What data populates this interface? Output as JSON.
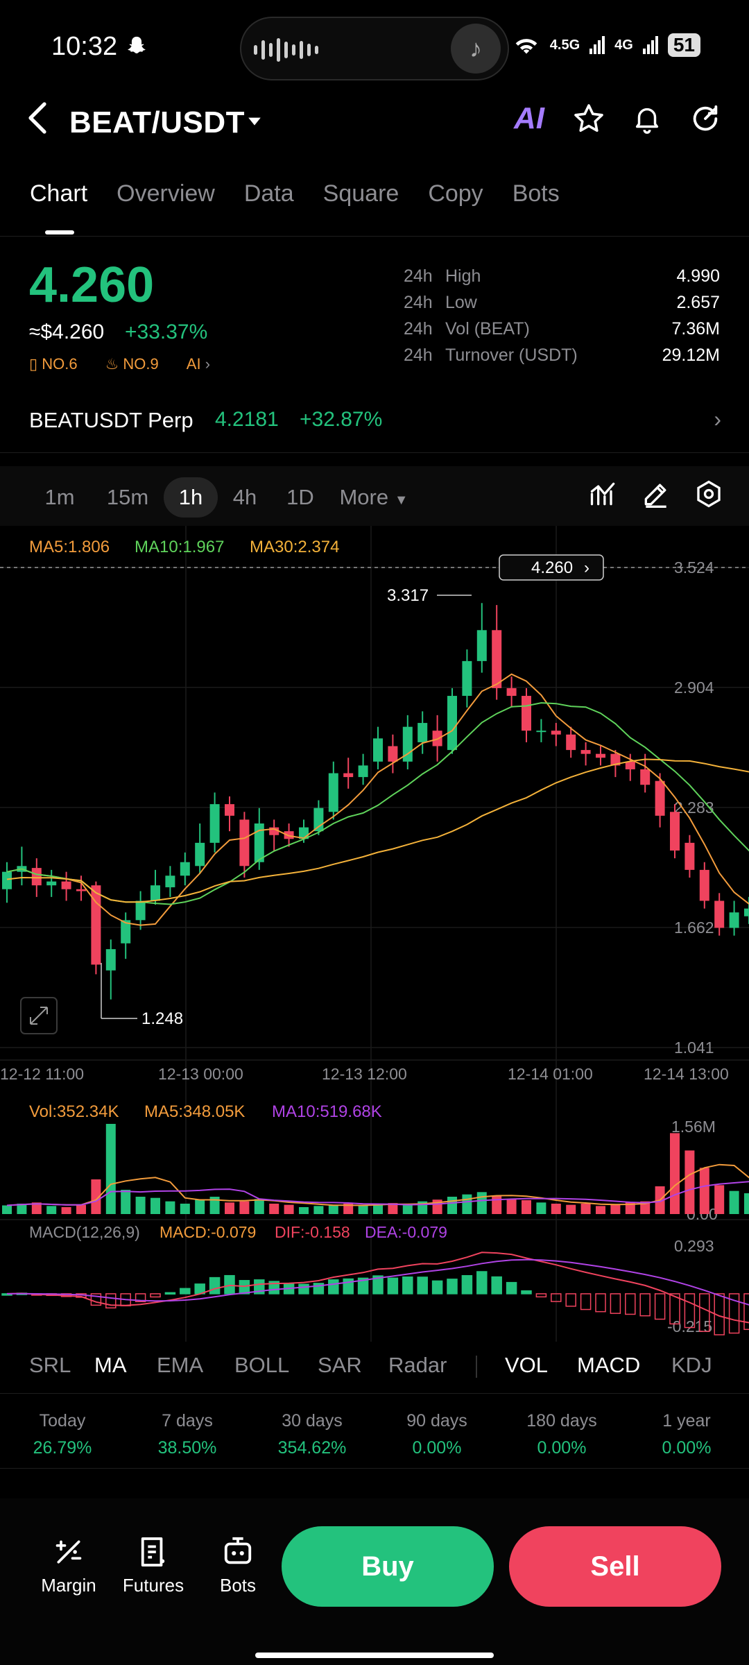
{
  "status_bar": {
    "time": "10:32",
    "network1": "4.5G",
    "network2": "4G",
    "battery": "51"
  },
  "header": {
    "pair": "BEAT/USDT",
    "ai_label": "AI"
  },
  "tabs": [
    {
      "label": "Chart",
      "active": true
    },
    {
      "label": "Overview"
    },
    {
      "label": "Data"
    },
    {
      "label": "Square"
    },
    {
      "label": "Copy"
    },
    {
      "label": "Bots"
    }
  ],
  "ticker": {
    "price": "4.260",
    "usd_price": "≈$4.260",
    "change": "+33.37%",
    "rank1": "NO.6",
    "rank2": "NO.9",
    "ai": "AI",
    "stats": [
      {
        "period": "24h",
        "label": "High",
        "value": "4.990"
      },
      {
        "period": "24h",
        "label": "Low",
        "value": "2.657"
      },
      {
        "period": "24h",
        "label": "Vol (BEAT)",
        "value": "7.36M"
      },
      {
        "period": "24h",
        "label": "Turnover (USDT)",
        "value": "29.12M"
      }
    ]
  },
  "perp": {
    "name": "BEATUSDT Perp",
    "price": "4.2181",
    "change": "+32.87%"
  },
  "timeframes": [
    {
      "label": "1m"
    },
    {
      "label": "15m"
    },
    {
      "label": "1h",
      "active": true
    },
    {
      "label": "4h"
    },
    {
      "label": "1D"
    },
    {
      "label": "More"
    }
  ],
  "colors": {
    "up": "#23c27d",
    "down": "#f0435e",
    "ma5": "#f39c3c",
    "ma10": "#5fd35b",
    "ma30": "#f4b23a",
    "vol_ma10": "#b043e6"
  },
  "chart_data": {
    "type": "candlestick",
    "ma_legend": {
      "ma5": "MA5:1.806",
      "ma10": "MA10:1.967",
      "ma30": "MA30:2.374"
    },
    "current_price_label": "4.260",
    "y_ticks": [
      "3.524",
      "2.904",
      "2.283",
      "1.662",
      "1.041"
    ],
    "y_tick_values": [
      3.524,
      2.904,
      2.283,
      1.662,
      1.041
    ],
    "x_ticks": [
      "12-12 11:00",
      "12-13 00:00",
      "12-13 12:00",
      "12-14 01:00",
      "12-14 13:00"
    ],
    "high_label": "3.317",
    "low_label": "1.248",
    "candles": [
      [
        1.86,
        1.95,
        2.0,
        1.79
      ],
      [
        1.95,
        1.98,
        2.08,
        1.88
      ],
      [
        1.97,
        1.88,
        2.02,
        1.82
      ],
      [
        1.88,
        1.9,
        1.96,
        1.82
      ],
      [
        1.9,
        1.86,
        1.95,
        1.8
      ],
      [
        1.86,
        1.85,
        1.93,
        1.8
      ],
      [
        1.88,
        1.47,
        1.9,
        1.42
      ],
      [
        1.44,
        1.55,
        1.6,
        1.29
      ],
      [
        1.58,
        1.7,
        1.74,
        1.5
      ],
      [
        1.7,
        1.8,
        1.85,
        1.65
      ],
      [
        1.8,
        1.88,
        1.96,
        1.78
      ],
      [
        1.87,
        1.93,
        1.98,
        1.82
      ],
      [
        1.93,
        2.0,
        2.05,
        1.88
      ],
      [
        1.98,
        2.1,
        2.2,
        1.94
      ],
      [
        2.1,
        2.3,
        2.36,
        2.05
      ],
      [
        2.3,
        2.24,
        2.34,
        2.16
      ],
      [
        2.22,
        1.98,
        2.26,
        1.92
      ],
      [
        2.0,
        2.2,
        2.28,
        1.96
      ],
      [
        2.18,
        2.14,
        2.22,
        2.06
      ],
      [
        2.16,
        2.12,
        2.2,
        2.08
      ],
      [
        2.12,
        2.18,
        2.22,
        2.1
      ],
      [
        2.16,
        2.28,
        2.32,
        2.14
      ],
      [
        2.26,
        2.46,
        2.52,
        2.22
      ],
      [
        2.46,
        2.44,
        2.54,
        2.38
      ],
      [
        2.44,
        2.5,
        2.56,
        2.4
      ],
      [
        2.52,
        2.64,
        2.7,
        2.48
      ],
      [
        2.6,
        2.52,
        2.66,
        2.46
      ],
      [
        2.52,
        2.7,
        2.76,
        2.48
      ],
      [
        2.62,
        2.72,
        2.78,
        2.56
      ],
      [
        2.68,
        2.6,
        2.76,
        2.52
      ],
      [
        2.58,
        2.86,
        2.9,
        2.56
      ],
      [
        2.86,
        3.04,
        3.1,
        2.8
      ],
      [
        3.04,
        3.2,
        3.34,
        2.98
      ],
      [
        3.2,
        2.9,
        3.33,
        2.84
      ],
      [
        2.9,
        2.86,
        2.96,
        2.8
      ],
      [
        2.86,
        2.68,
        2.9,
        2.62
      ],
      [
        2.68,
        2.68,
        2.74,
        2.62
      ],
      [
        2.68,
        2.66,
        2.72,
        2.6
      ],
      [
        2.66,
        2.58,
        2.7,
        2.54
      ],
      [
        2.58,
        2.56,
        2.62,
        2.5
      ],
      [
        2.56,
        2.54,
        2.6,
        2.5
      ],
      [
        2.56,
        2.5,
        2.58,
        2.44
      ],
      [
        2.52,
        2.48,
        2.56,
        2.42
      ],
      [
        2.48,
        2.4,
        2.56,
        2.36
      ],
      [
        2.42,
        2.24,
        2.46,
        2.18
      ],
      [
        2.26,
        2.06,
        2.3,
        2.02
      ],
      [
        2.1,
        1.96,
        2.14,
        1.92
      ],
      [
        1.96,
        1.8,
        2.0,
        1.76
      ],
      [
        1.8,
        1.66,
        1.84,
        1.62
      ],
      [
        1.66,
        1.74,
        1.8,
        1.62
      ],
      [
        1.72,
        1.76,
        1.82,
        1.68
      ],
      [
        1.76,
        1.7,
        1.8,
        1.66
      ],
      [
        1.7,
        1.64,
        1.74,
        1.6
      ]
    ],
    "vol_legend": {
      "vol": "Vol:352.34K",
      "ma5": "MA5:348.05K",
      "ma10": "MA10:519.68K"
    },
    "vol_y_ticks": [
      "1.56M",
      "0.00"
    ],
    "volumes": [
      0.15,
      0.18,
      0.2,
      0.14,
      0.12,
      0.16,
      0.6,
      1.56,
      0.42,
      0.3,
      0.28,
      0.22,
      0.18,
      0.25,
      0.3,
      0.2,
      0.22,
      0.26,
      0.18,
      0.16,
      0.12,
      0.14,
      0.16,
      0.18,
      0.15,
      0.17,
      0.19,
      0.16,
      0.22,
      0.25,
      0.3,
      0.34,
      0.38,
      0.32,
      0.26,
      0.24,
      0.2,
      0.18,
      0.16,
      0.18,
      0.14,
      0.16,
      0.2,
      0.22,
      0.48,
      1.4,
      1.1,
      0.8,
      0.5,
      0.4,
      0.36,
      0.3,
      0.35
    ],
    "macd_legend": {
      "title": "MACD(12,26,9)",
      "macd": "MACD:-0.079",
      "dif": "DIF:-0.158",
      "dea": "DEA:-0.079"
    },
    "macd_y_ticks": [
      "0.293",
      "-0.215"
    ]
  },
  "indicators": {
    "main": [
      {
        "label": "SRL"
      },
      {
        "label": "MA",
        "active": true
      },
      {
        "label": "EMA"
      },
      {
        "label": "BOLL"
      },
      {
        "label": "SAR"
      },
      {
        "label": "Radar"
      }
    ],
    "sub": [
      {
        "label": "VOL",
        "active": true
      },
      {
        "label": "MACD",
        "active": true
      },
      {
        "label": "KDJ"
      }
    ]
  },
  "returns": [
    {
      "period": "Today",
      "value": "26.79%"
    },
    {
      "period": "7 days",
      "value": "38.50%"
    },
    {
      "period": "30 days",
      "value": "354.62%"
    },
    {
      "period": "90 days",
      "value": "0.00%"
    },
    {
      "period": "180 days",
      "value": "0.00%"
    },
    {
      "period": "1 year",
      "value": "0.00%"
    }
  ],
  "bottom_nav": {
    "margin": "Margin",
    "futures": "Futures",
    "bots": "Bots",
    "buy": "Buy",
    "sell": "Sell"
  }
}
